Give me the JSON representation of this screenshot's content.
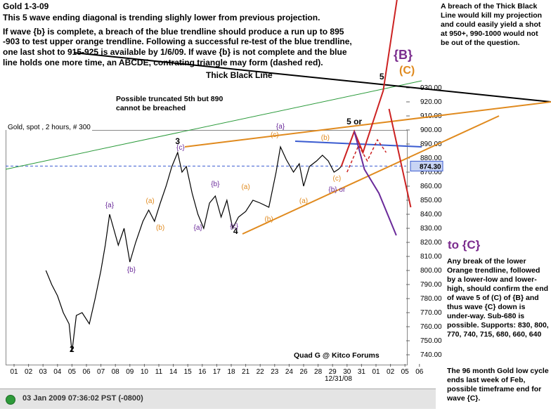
{
  "title": "Gold 1-3-09",
  "notes": [
    "This 5 wave ending diagonal is trending slighly lower from previous projection.",
    " If wave {b} is complete, a breach of the blue trendline should produce a run up to 895",
    " -903 to test upper orange trendline. Following a successful re-test of the blue trendline,",
    "one last shot to 915-925 is available by 1/6/09. If wave {b} is not complete and the blue",
    "line holds one more time, an ABCDE, contrating triangle may form (dashed red)."
  ],
  "right_note": "A breach of the Thick Black Line would kill my projection and  could easily yield a shot at 950+, 990-1000 would not be out of the question.",
  "thick_line_label": "Thick Black Line",
  "trunc_note": "Possible truncated 5th but 890 cannot be breached",
  "big_b": "{B}",
  "big_c": "(C)",
  "to_c": "to {C}",
  "break_note": "Any break of the lower Orange trendline, followed by a lower-low and lower-high, should confirm the end of wave 5 of (C) of {B} and thus wave {C} down is under-way. Sub-680 is possible. Supports: 830, 800, 770, 740, 715, 680, 660, 640",
  "cycle_note": "The 96 month Gold low cycle ends last week of Feb, possible timeframe end for wave {C}.",
  "chart_header": "Gold, spot , 2 hours, # 300",
  "credit": "Quad G @ Kitco Forums",
  "date_label": "12/31/08",
  "status": "03 Jan 2009 07:36:02  PST (-0800)",
  "colors": {
    "orange": "#e08a1e",
    "blue": "#3a5bd0",
    "purple": "#6a2a9a",
    "red": "#cc2222",
    "green": "#2a9a3a",
    "black": "#000000"
  },
  "chart_data": {
    "type": "line",
    "title": "Gold, spot , 2 hours, # 300",
    "x_ticks": [
      "01",
      "02",
      "03",
      "04",
      "05",
      "06",
      "07",
      "08",
      "09",
      "10",
      "11",
      "14",
      "15",
      "16",
      "17",
      "18",
      "21",
      "22",
      "23",
      "24",
      "26",
      "28",
      "29",
      "30",
      "31",
      "01",
      "02",
      "05",
      "06"
    ],
    "y_ticks": [
      740,
      750,
      760,
      770,
      780,
      790,
      800,
      810,
      820,
      830,
      840,
      850,
      860,
      870,
      880,
      890,
      900,
      910,
      920,
      930
    ],
    "ylim": [
      735,
      935
    ],
    "current_price_label": "874.30",
    "current_price": 874.3,
    "wave_labels": [
      {
        "text": "2",
        "x": 4,
        "y": 742,
        "color": "black"
      },
      {
        "text": "3",
        "x": 11.3,
        "y": 890,
        "color": "black"
      },
      {
        "text": "{c}",
        "x": 11.5,
        "y": 886,
        "color": "purple"
      },
      {
        "text": "4",
        "x": 15.3,
        "y": 826,
        "color": "black"
      },
      {
        "text": "{c}",
        "x": 15.2,
        "y": 830,
        "color": "purple"
      },
      {
        "text": "{a}",
        "x": 6.6,
        "y": 845,
        "color": "purple"
      },
      {
        "text": "{b}",
        "x": 8.1,
        "y": 799,
        "color": "purple"
      },
      {
        "text": "(a)",
        "x": 9.4,
        "y": 848,
        "color": "orange"
      },
      {
        "text": "(b)",
        "x": 10.1,
        "y": 829,
        "color": "orange"
      },
      {
        "text": "{a}",
        "x": 12.7,
        "y": 829,
        "color": "purple"
      },
      {
        "text": "{b}",
        "x": 13.9,
        "y": 860,
        "color": "purple"
      },
      {
        "text": "(a)",
        "x": 16.0,
        "y": 858,
        "color": "orange"
      },
      {
        "text": "(b)",
        "x": 17.6,
        "y": 835,
        "color": "orange"
      },
      {
        "text": "{a}",
        "x": 18.4,
        "y": 901,
        "color": "purple"
      },
      {
        "text": "(a)",
        "x": 20.0,
        "y": 848,
        "color": "orange"
      },
      {
        "text": "(c)",
        "x": 22.3,
        "y": 864,
        "color": "orange"
      },
      {
        "text": "{b} or",
        "x": 22.3,
        "y": 856,
        "color": "purple"
      },
      {
        "text": "(b)",
        "x": 21.5,
        "y": 893,
        "color": "orange"
      },
      {
        "text": "5 or",
        "x": 23.5,
        "y": 904,
        "color": "black"
      },
      {
        "text": "5",
        "x": 25.4,
        "y": 936,
        "color": "black"
      },
      {
        "text": "(c)",
        "x": 18.0,
        "y": 895,
        "color": "orange"
      }
    ],
    "right_axis_labels": [
      "930.00",
      "920.00",
      "910.00",
      "900.00",
      "890.00",
      "874.30",
      "860.00",
      "850.00",
      "840.00",
      "830.00",
      "820.00",
      "810.00",
      "800.00",
      "790.00",
      "780.00",
      "770.00",
      "760.00",
      "750.00",
      "740.00"
    ]
  }
}
